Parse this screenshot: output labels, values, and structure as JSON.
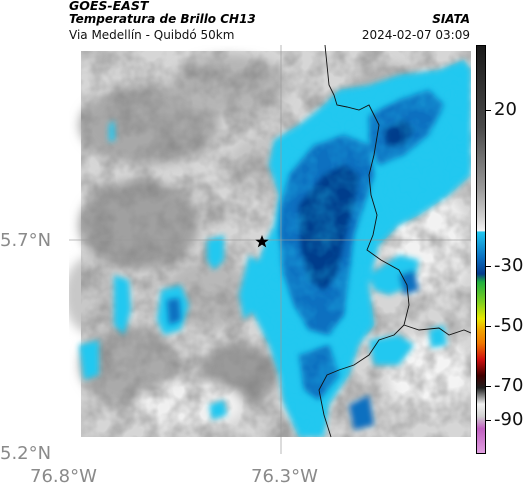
{
  "header": {
    "satellite": "GOES-EAST",
    "product": "Temperatura de Brillo CH13",
    "region": "Via Medellín - Quibdó 50km",
    "org": "SIATA",
    "datetime": "2024-02-07 03:09"
  },
  "axes": {
    "lat_labels": [
      "5.7°N",
      "5.2°N"
    ],
    "lon_labels": [
      "76.8°W",
      "76.3°W"
    ]
  },
  "colorbar": {
    "labels": [
      "20",
      "-30",
      "-50",
      "-70",
      "-90"
    ],
    "colors": {
      "warm_top": "#1a1a1a",
      "gray_mid": "#bfbfbf",
      "light": "#f2f2f2",
      "cyan": "#22c8f0",
      "blue": "#0a6fc0",
      "deep_blue": "#063c8c",
      "green": "#22b040",
      "yellow": "#e8e800",
      "orange": "#f07800",
      "red": "#d01010",
      "magenta": "#c060c0"
    }
  },
  "map": {
    "marker_icon": "star-icon"
  }
}
